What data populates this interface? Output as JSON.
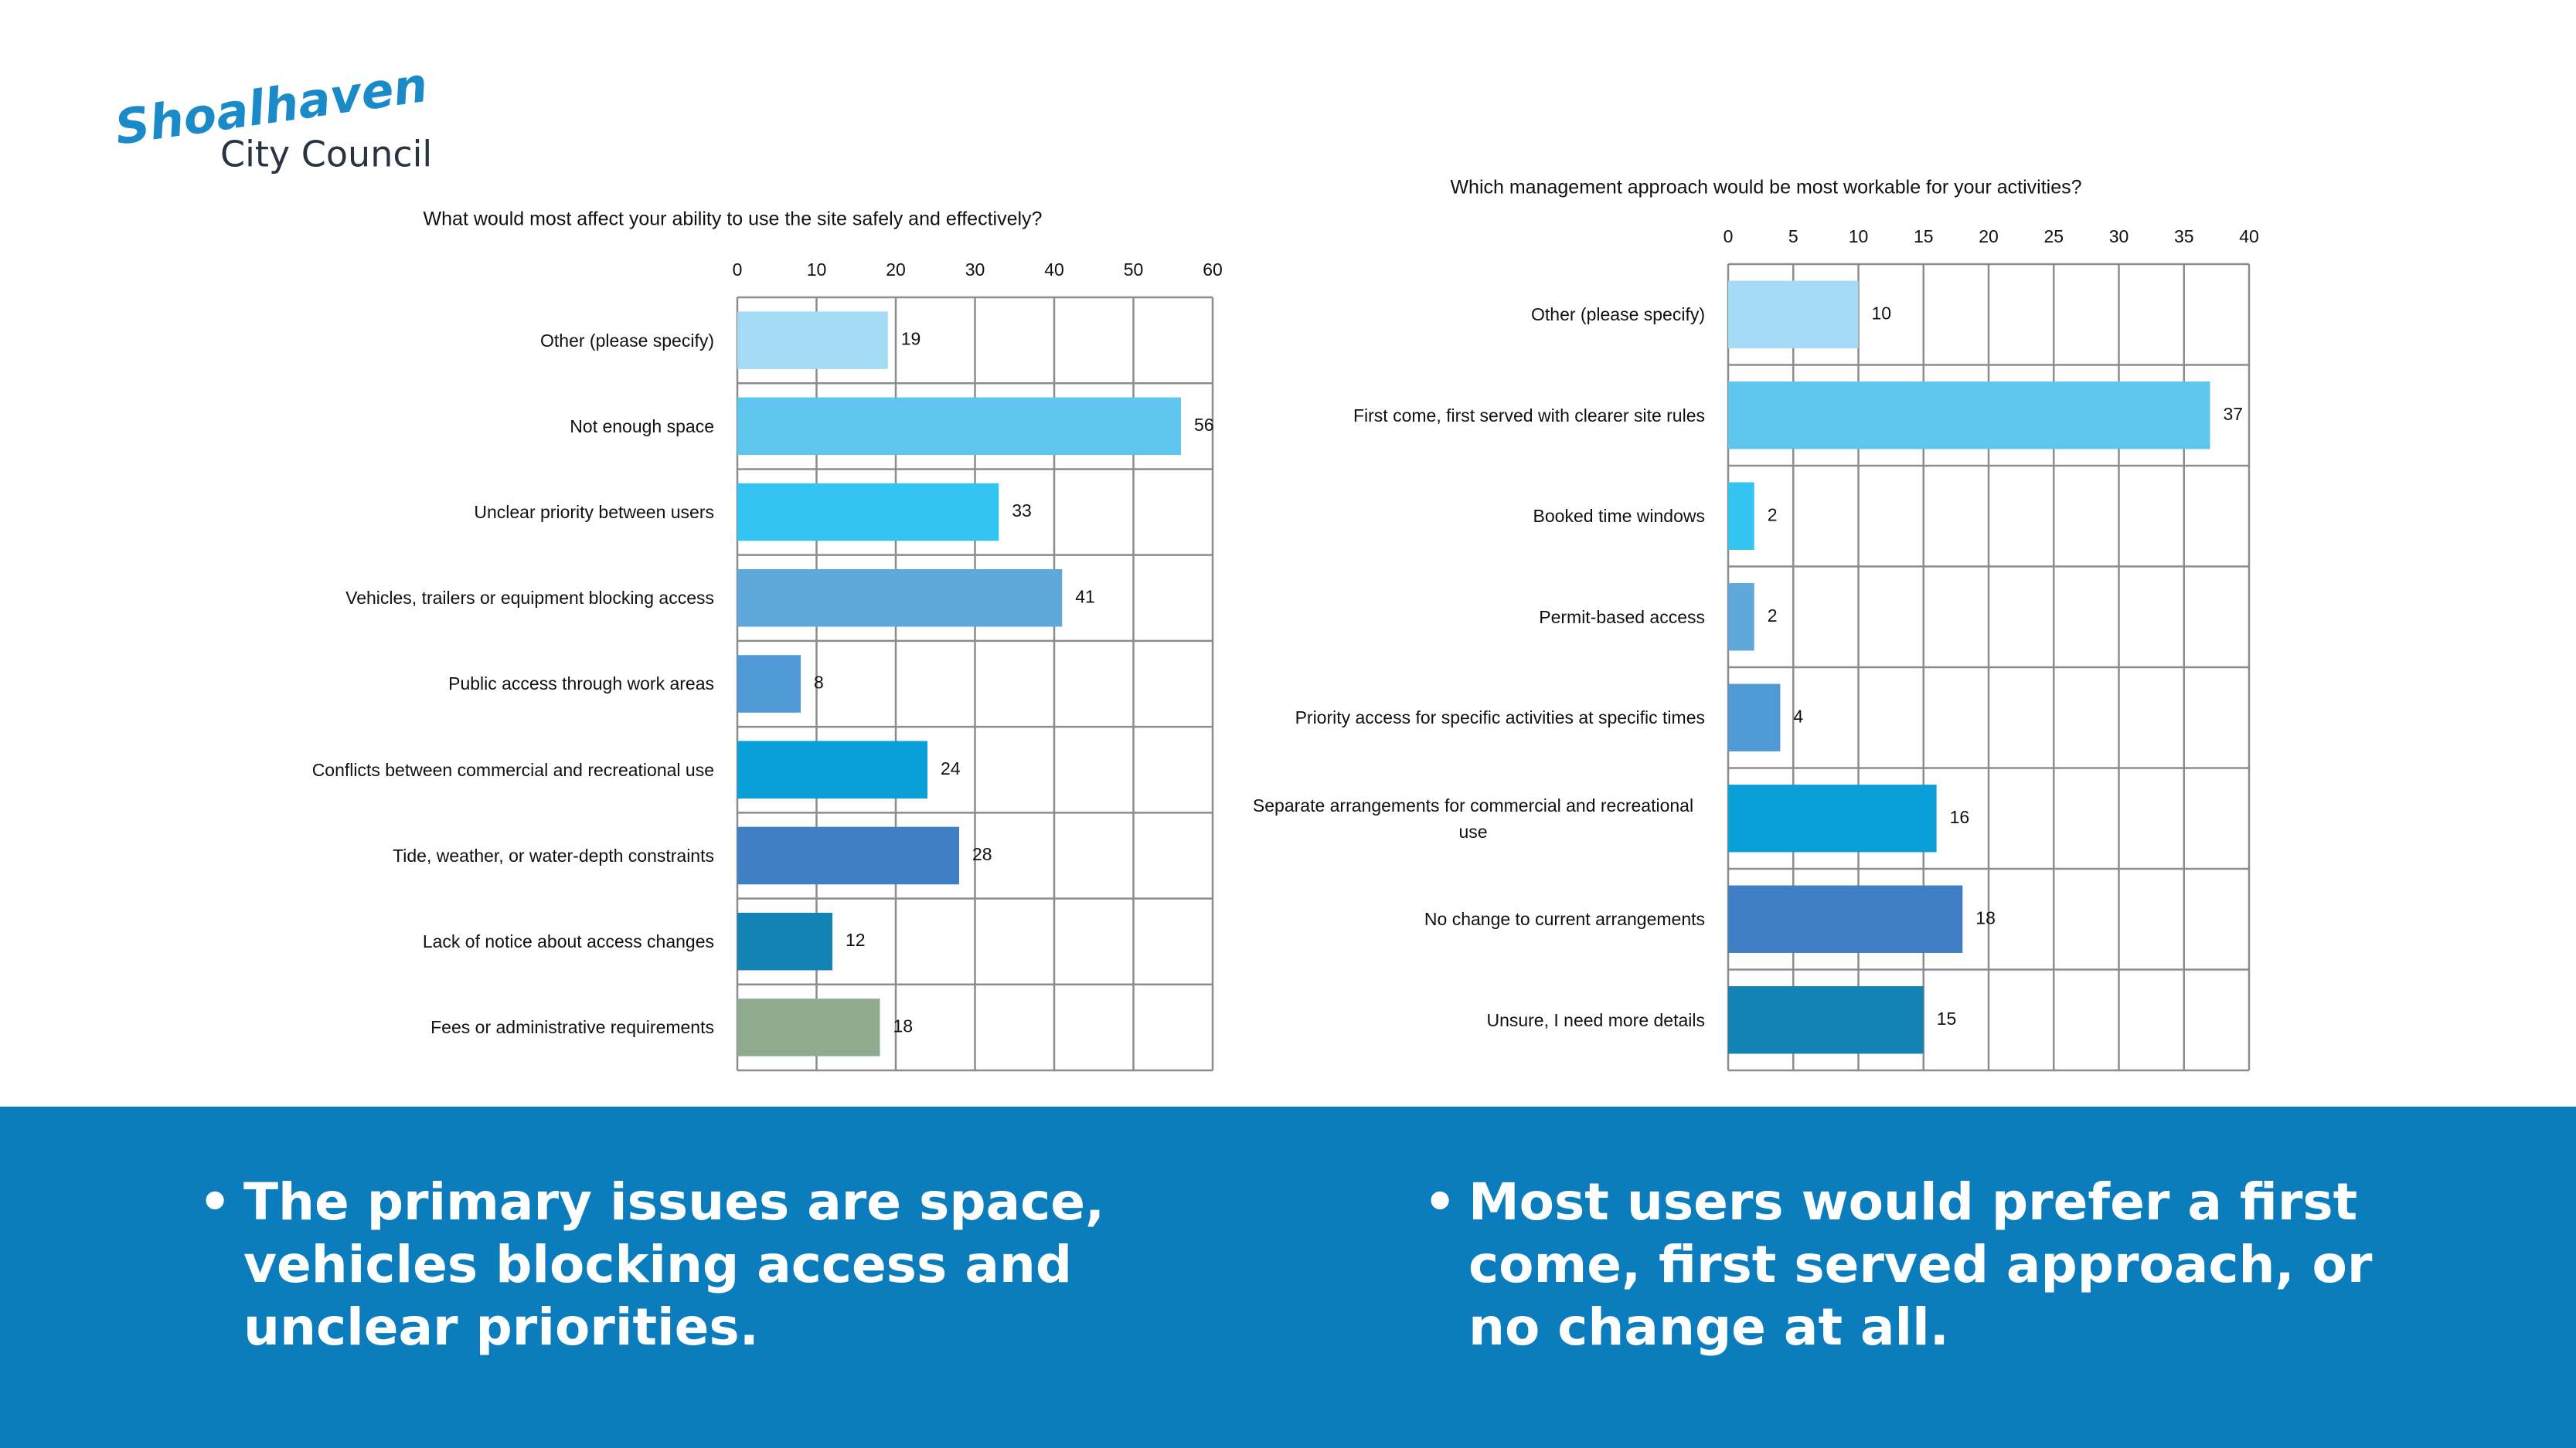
{
  "logo": {
    "name": "Shoalhaven",
    "subtitle": "City Council"
  },
  "chart_data": [
    {
      "type": "bar",
      "orientation": "horizontal",
      "title": "What would most affect your ability to use the site safely and effectively?",
      "categories": [
        "Other (please specify)",
        "Not enough space",
        "Unclear priority between users",
        "Vehicles, trailers or equipment blocking access",
        "Public access through work areas",
        "Conflicts between commercial and recreational use",
        "Tide, weather, or water-depth constraints",
        "Lack of notice about access changes",
        "Fees or administrative requirements"
      ],
      "values": [
        19,
        56,
        33,
        41,
        8,
        24,
        28,
        12,
        18
      ],
      "colors": [
        "#a3dcf4",
        "#5ec6ee",
        "#34c4f1",
        "#5fa8dc",
        "#4f99d6",
        "#0a9fd6",
        "#3f80c4",
        "#1383b6",
        "#8fab8f"
      ],
      "xlim": [
        0,
        60
      ],
      "xticks": [
        0,
        10,
        20,
        30,
        40,
        50,
        60
      ],
      "grid": true
    },
    {
      "type": "bar",
      "orientation": "horizontal",
      "title": "Which management approach would be most workable for your activities?",
      "categories": [
        "Other (please specify)",
        "First come, first served with clearer site rules",
        "Booked time windows",
        "Permit-based access",
        "Priority access for specific activities at specific times",
        "Separate arrangements for commercial and recreational use",
        "No change to current arrangements",
        "Unsure, I need more details"
      ],
      "values": [
        10,
        37,
        2,
        2,
        4,
        16,
        18,
        15
      ],
      "colors": [
        "#a3dcf4",
        "#5ec6ee",
        "#34c4f1",
        "#5fa8dc",
        "#4f99d6",
        "#0a9fd6",
        "#3f80c4",
        "#1383b6"
      ],
      "xlim": [
        0,
        40
      ],
      "xticks": [
        0,
        5,
        10,
        15,
        20,
        25,
        30,
        35,
        40
      ],
      "grid": true
    }
  ],
  "bullets": [
    "The primary issues are space, vehicles blocking access and unclear priorities.",
    "Most users would prefer a first come, first served approach, or no change at all."
  ]
}
